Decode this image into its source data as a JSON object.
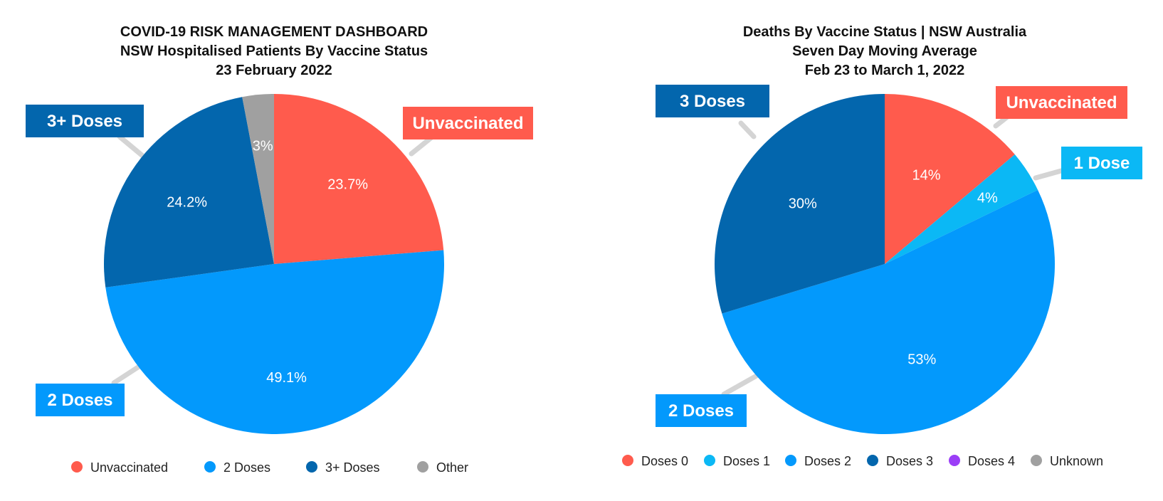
{
  "chart_data": [
    {
      "type": "pie",
      "title": [
        "COVID-19 RISK MANAGEMENT DASHBOARD",
        "NSW Hospitalised Patients By Vaccine Status",
        "23 February 2022"
      ],
      "slices": [
        {
          "label": "Unvaccinated",
          "value": 23.7,
          "data_label": "23.7%",
          "color": "#ff5b4d",
          "callout": "Unvaccinated"
        },
        {
          "label": "2 Doses",
          "value": 49.1,
          "data_label": "49.1%",
          "color": "#0399fc",
          "callout": "2 Doses"
        },
        {
          "label": "3+ Doses",
          "value": 24.2,
          "data_label": "24.2%",
          "color": "#0366ad",
          "callout": "3+ Doses"
        },
        {
          "label": "Other",
          "value": 3,
          "data_label": "3%",
          "color": "#a0a0a0",
          "callout": ""
        }
      ],
      "legend": {
        "position": "bottom",
        "items": [
          {
            "label": "Unvaccinated",
            "color": "#ff5b4d"
          },
          {
            "label": "2 Doses",
            "color": "#0399fc"
          },
          {
            "label": "3+ Doses",
            "color": "#0366ad"
          },
          {
            "label": "Other",
            "color": "#a0a0a0"
          }
        ]
      }
    },
    {
      "type": "pie",
      "title": [
        "Deaths By Vaccine Status | NSW Australia",
        "Seven Day Moving Average",
        "Feb 23 to March 1, 2022"
      ],
      "slices": [
        {
          "label": "Doses 0",
          "value": 14,
          "data_label": "14%",
          "color": "#ff5b4d",
          "callout": "Unvaccinated"
        },
        {
          "label": "Doses 1",
          "value": 4,
          "data_label": "4%",
          "color": "#0bb8f5",
          "callout": "1 Dose"
        },
        {
          "label": "Doses 2",
          "value": 53,
          "data_label": "53%",
          "color": "#0399fc",
          "callout": "2 Doses"
        },
        {
          "label": "Doses 3",
          "value": 30,
          "data_label": "30%",
          "color": "#0366ad",
          "callout": "3 Doses"
        }
      ],
      "legend": {
        "position": "bottom",
        "items": [
          {
            "label": "Doses 0",
            "color": "#ff5b4d"
          },
          {
            "label": "Doses 1",
            "color": "#0bb8f5"
          },
          {
            "label": "Doses 2",
            "color": "#0399fc"
          },
          {
            "label": "Doses 3",
            "color": "#0366ad"
          },
          {
            "label": "Doses 4",
            "color": "#9b3ef7"
          },
          {
            "label": "Unknown",
            "color": "#a0a0a0"
          }
        ]
      }
    }
  ]
}
